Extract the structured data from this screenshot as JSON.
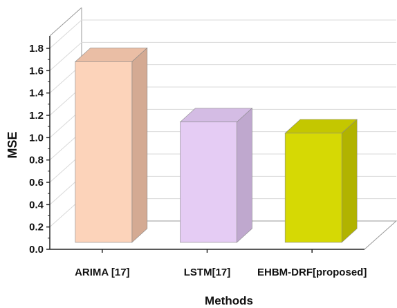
{
  "chart_data": {
    "type": "bar",
    "title": "",
    "xlabel": "Methods",
    "ylabel": "MSE",
    "categories": [
      "ARIMA [17]",
      "LSTM[17]",
      "EHBM-DRF[proposed]"
    ],
    "values": [
      1.68,
      1.14,
      1.04
    ],
    "ylim": [
      0,
      1.8
    ],
    "yticks": [
      "0.0",
      "0.2",
      "0.4",
      "0.6",
      "0.8",
      "1.0",
      "1.2",
      "1.4",
      "1.6",
      "1.8"
    ],
    "grid": true,
    "style": "3d",
    "colors": [
      {
        "front": "#FCD3BA",
        "side": "#D4AA93",
        "top": "#EABEA5"
      },
      {
        "front": "#E5CCF4",
        "side": "#BFA8CE",
        "top": "#D4BCE4"
      },
      {
        "front": "#D6D904",
        "side": "#B1B300",
        "top": "#C4C700"
      }
    ]
  }
}
